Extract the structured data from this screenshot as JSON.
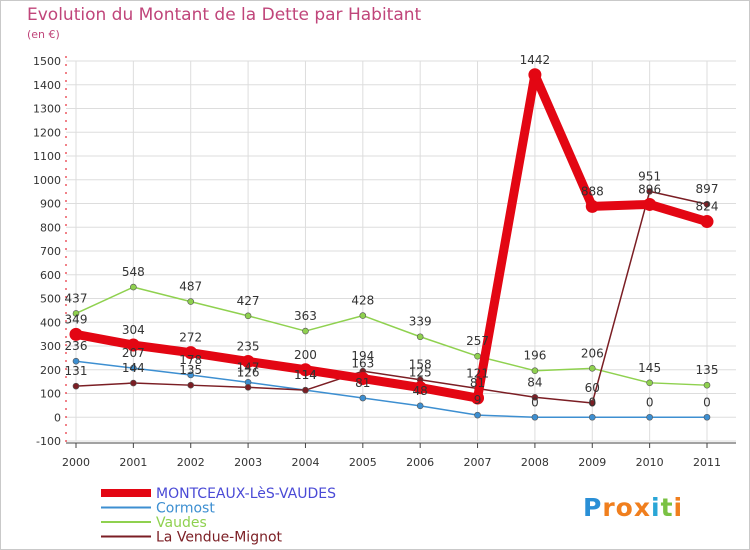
{
  "title": "Evolution du Montant de la Dette par Habitant",
  "subtitle": "(en €)",
  "logo": {
    "text": "Proxiti",
    "letters": [
      "P",
      "r",
      "o",
      "x",
      "i",
      "t",
      "i"
    ],
    "colors": [
      "#2a8fd6",
      "#f07f1e",
      "#f07f1e",
      "#f07f1e",
      "#2aa6d6",
      "#7ac143",
      "#f07f1e"
    ]
  },
  "chart_data": {
    "type": "line",
    "categories": [
      "2000",
      "2001",
      "2002",
      "2003",
      "2004",
      "2005",
      "2006",
      "2007",
      "2008",
      "2009",
      "2010",
      "2011"
    ],
    "yticks": [
      -100,
      0,
      100,
      200,
      300,
      400,
      500,
      600,
      700,
      800,
      900,
      1000,
      1100,
      1200,
      1300,
      1400,
      1500
    ],
    "ylim": [
      -100,
      1500
    ],
    "grid": true,
    "legend_position": "bottom-left",
    "series": [
      {
        "name": "MONTCEAUX-LèS-VAUDES",
        "color": "#e30613",
        "legend_color": "#4a4ad6",
        "emphasis": true,
        "values": [
          349,
          304,
          272,
          235,
          200,
          163,
          125,
          81,
          1442,
          888,
          896,
          824
        ],
        "labels": [
          "349",
          "304",
          "272",
          "235",
          "200",
          "163",
          "125",
          "81",
          "1442",
          "888",
          "896",
          "824"
        ]
      },
      {
        "name": "Cormost",
        "color": "#3d8fd1",
        "legend_color": "#3d8fd1",
        "values": [
          236,
          207,
          178,
          147,
          114,
          81,
          48,
          9,
          0,
          0,
          0,
          0
        ],
        "labels": [
          "236",
          "207",
          "178",
          "147",
          "114",
          "81",
          "48",
          "9",
          "0",
          "0",
          "0",
          "0"
        ]
      },
      {
        "name": "Vaudes",
        "color": "#8fd14f",
        "legend_color": "#8fd14f",
        "values": [
          437,
          548,
          487,
          427,
          363,
          428,
          339,
          257,
          196,
          206,
          145,
          135
        ],
        "labels": [
          "437",
          "548",
          "487",
          "427",
          "363",
          "428",
          "339",
          "257",
          "196",
          "206",
          "145",
          "135"
        ]
      },
      {
        "name": "La Vendue-Mignot",
        "color": "#7b1e24",
        "legend_color": "#7b1e24",
        "values": [
          131,
          144,
          135,
          126,
          114,
          194,
          158,
          121,
          84,
          60,
          951,
          897
        ],
        "labels": [
          "131",
          "144",
          "135",
          "126",
          "114",
          "194",
          "158",
          "121",
          "84",
          "60",
          "951",
          "897"
        ]
      }
    ]
  }
}
